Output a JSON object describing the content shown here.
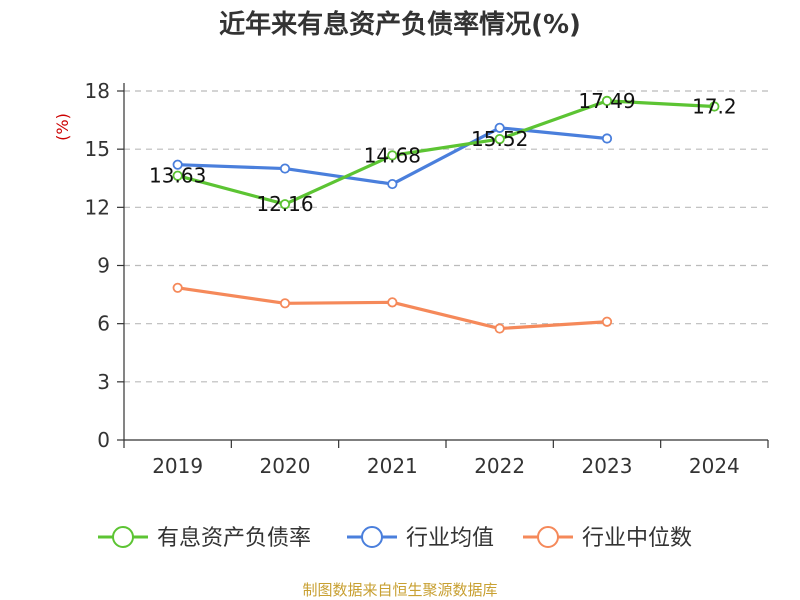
{
  "chart_data": {
    "type": "line",
    "title": "近年来有息资产负债率情况(%)",
    "ylabel": "(%)",
    "categories": [
      "2019",
      "2020",
      "2021",
      "2022",
      "2023",
      "2024"
    ],
    "yticks": [
      0,
      3,
      6,
      9,
      12,
      15,
      18
    ],
    "ylim": [
      0,
      18
    ],
    "grid": true,
    "legend_position": "bottom",
    "series": [
      {
        "name": "有息资产负债率",
        "color": "#5cc433",
        "values": [
          13.63,
          12.16,
          14.68,
          15.52,
          17.49,
          17.2
        ],
        "labels": [
          "13.63",
          "12.16",
          "14.68",
          "15.52",
          "17.49",
          "17.2"
        ]
      },
      {
        "name": "行业均值",
        "color": "#4a7fdc",
        "values": [
          14.2,
          14.0,
          13.2,
          16.1,
          15.55,
          null
        ]
      },
      {
        "name": "行业中位数",
        "color": "#f5895a",
        "values": [
          7.85,
          7.05,
          7.1,
          5.75,
          6.1,
          null
        ]
      }
    ]
  },
  "source": "制图数据来自恒生聚源数据库"
}
